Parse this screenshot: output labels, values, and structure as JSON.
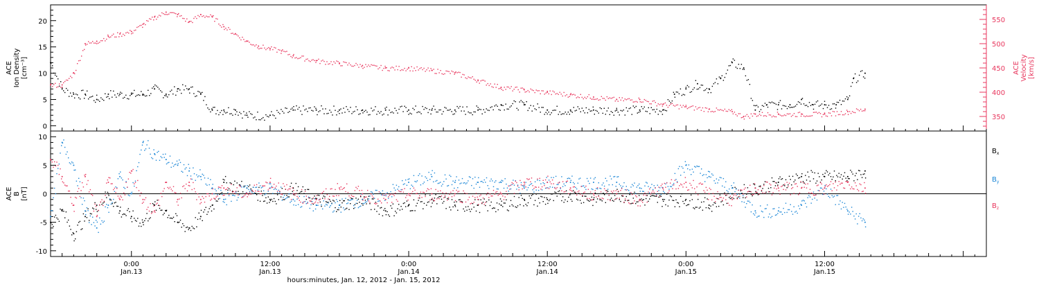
{
  "colors": {
    "axis": "#000000",
    "red": "#e8365d",
    "blue": "#1a86d6",
    "black": "#000000"
  },
  "xaxis": {
    "ticks": [
      {
        "t": "0:00",
        "d": "Jan.13",
        "h": 24
      },
      {
        "t": "12:00",
        "d": "Jan.13",
        "h": 36
      },
      {
        "t": "0:00",
        "d": "Jan.14",
        "h": 48
      },
      {
        "t": "12:00",
        "d": "Jan.14",
        "h": 60
      },
      {
        "t": "0:00",
        "d": "Jan.15",
        "h": 72
      },
      {
        "t": "12:00",
        "d": "Jan.15",
        "h": 84
      }
    ],
    "title": "hours:minutes, Jan. 12, 2012 - Jan. 15, 2012",
    "range_hours": [
      17,
      98
    ]
  },
  "chart_data": [
    {
      "type": "scatter",
      "ylabel_left": [
        "ACE",
        "Ion Density",
        "[cm⁻³]"
      ],
      "ylabel_right": [
        "ACE",
        "Velocity",
        "[km/s]"
      ],
      "left_ticks": [
        "0",
        "5",
        "10",
        "15",
        "20"
      ],
      "left_ylim": [
        -1,
        23
      ],
      "right_ticks": [
        "350",
        "400",
        "450",
        "500",
        "550"
      ],
      "right_ylim": [
        320,
        580
      ],
      "series": [
        {
          "name": "",
          "axis": "left",
          "color": "black",
          "x": [
            17,
            18,
            19,
            20,
            21,
            22,
            23,
            24,
            25,
            26,
            27,
            28,
            29,
            30,
            31,
            32,
            33,
            34,
            36,
            38,
            40,
            42,
            44,
            46,
            48,
            50,
            52,
            54,
            56,
            58,
            60,
            62,
            64,
            66,
            68,
            70,
            71,
            72,
            73,
            74,
            75,
            76,
            77,
            78,
            79,
            80,
            81,
            82,
            83,
            84,
            85,
            86,
            86.5,
            87.5
          ],
          "y": [
            12,
            7,
            6,
            6,
            5,
            6,
            6,
            6,
            6,
            7,
            6,
            7,
            7,
            6,
            3,
            3,
            3,
            2,
            2,
            3,
            3,
            3,
            3,
            3,
            3,
            3,
            3,
            3,
            4,
            4,
            3,
            3,
            3,
            3,
            3,
            3,
            6,
            7,
            8,
            7,
            9,
            12,
            11,
            3,
            4,
            4,
            4,
            5,
            4,
            4,
            4,
            5,
            9,
            10
          ]
        },
        {
          "name": "",
          "axis": "right",
          "color": "red",
          "x": [
            17,
            18,
            19,
            20,
            21,
            22,
            23,
            24,
            25,
            26,
            27,
            28,
            29,
            30,
            31,
            32,
            33,
            34,
            35,
            36,
            37,
            38,
            40,
            42,
            44,
            46,
            48,
            50,
            52,
            54,
            56,
            58,
            60,
            62,
            64,
            66,
            68,
            70,
            72,
            74,
            76,
            77,
            78,
            80,
            82,
            84,
            86,
            87.5
          ],
          "y": [
            415,
            415,
            440,
            500,
            505,
            515,
            520,
            525,
            540,
            555,
            565,
            560,
            545,
            560,
            555,
            535,
            520,
            505,
            495,
            490,
            485,
            475,
            465,
            460,
            455,
            450,
            450,
            445,
            440,
            425,
            410,
            405,
            400,
            395,
            390,
            385,
            385,
            375,
            370,
            365,
            360,
            350,
            355,
            355,
            355,
            355,
            360,
            365
          ]
        }
      ]
    },
    {
      "type": "scatter",
      "ylabel_left": [
        "ACE",
        "B",
        "[nT]"
      ],
      "left_ticks": [
        "-10",
        "-5",
        "0",
        "5",
        "10"
      ],
      "left_ylim": [
        -11,
        11
      ],
      "legend": [
        "Bₓ",
        "Bᵧ",
        "B₂"
      ],
      "legend_text": {
        "bx": "B",
        "bx_sub": "x",
        "by": "B",
        "by_sub": "y",
        "bz": "B",
        "bz_sub": "z"
      },
      "series": [
        {
          "name": "Bx",
          "color": "black",
          "x": [
            17,
            18,
            19,
            20,
            21,
            22,
            23,
            24,
            25,
            26,
            27,
            28,
            29,
            30,
            31,
            32,
            34,
            36,
            38,
            40,
            42,
            44,
            46,
            48,
            50,
            52,
            54,
            56,
            58,
            60,
            62,
            64,
            66,
            68,
            70,
            72,
            74,
            76,
            78,
            80,
            82,
            84,
            86,
            87.5
          ],
          "y": [
            -5,
            -3,
            -7,
            -4,
            -2,
            0,
            -3,
            -4,
            -5,
            -2,
            -3,
            -5,
            -6,
            -4,
            -2,
            2,
            1,
            -1,
            1,
            -1,
            -2,
            -1,
            -3,
            -2,
            -1,
            -2,
            -2,
            -2,
            -1,
            -1,
            0,
            -1,
            0,
            -1,
            -1,
            -1,
            -2,
            0,
            1,
            2,
            3,
            3,
            3,
            4
          ]
        },
        {
          "name": "By",
          "color": "blue",
          "x": [
            17,
            18,
            19,
            20,
            21,
            22,
            23,
            24,
            25,
            26,
            27,
            28,
            29,
            30,
            31,
            32,
            34,
            36,
            38,
            40,
            42,
            44,
            46,
            48,
            50,
            52,
            54,
            56,
            58,
            60,
            62,
            64,
            66,
            68,
            70,
            72,
            74,
            76,
            78,
            80,
            82,
            84,
            86,
            87.5
          ],
          "y": [
            -4,
            9,
            5,
            -3,
            -6,
            -2,
            3,
            0,
            9,
            7,
            6,
            5,
            4,
            3,
            1,
            -1,
            1,
            1,
            -1,
            -2,
            -2,
            -1,
            0,
            2,
            3,
            2,
            2,
            2,
            1,
            2,
            2,
            2,
            2,
            1,
            1,
            5,
            3,
            1,
            -3,
            -3,
            -2,
            1,
            -3,
            -5
          ]
        },
        {
          "name": "Bz",
          "color": "red",
          "x": [
            17,
            18,
            19,
            20,
            21,
            22,
            23,
            24,
            25,
            26,
            27,
            28,
            29,
            30,
            31,
            32,
            34,
            36,
            38,
            40,
            42,
            44,
            46,
            48,
            50,
            52,
            54,
            56,
            58,
            60,
            62,
            64,
            66,
            68,
            70,
            72,
            74,
            76,
            78,
            80,
            82,
            84,
            86,
            87.5
          ],
          "y": [
            6,
            3,
            -2,
            3,
            -4,
            2,
            -1,
            4,
            -1,
            -3,
            2,
            -1,
            2,
            -1,
            0,
            1,
            0,
            2,
            0,
            -1,
            1,
            0,
            -1,
            0,
            0,
            0,
            -1,
            0,
            2,
            2,
            1,
            0,
            0,
            -1,
            1,
            2,
            0,
            -1,
            1,
            1,
            1,
            1,
            2,
            1
          ]
        }
      ]
    }
  ]
}
